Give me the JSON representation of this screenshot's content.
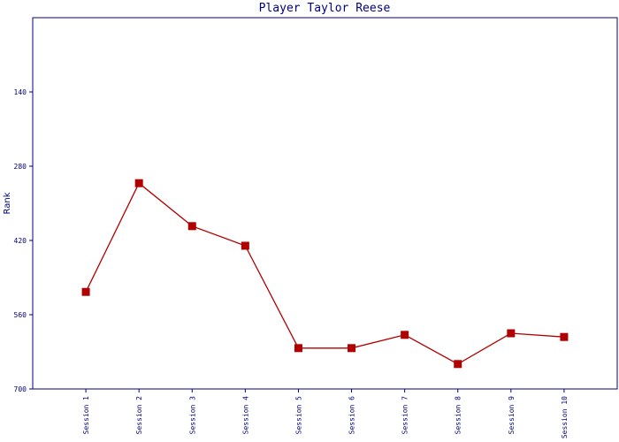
{
  "chart_data": {
    "type": "line",
    "title": "Player Taylor Reese",
    "y_label": "Rank",
    "categories": [
      "Session 1",
      "Session 2",
      "Session 3",
      "Session 4",
      "Session 5",
      "Session 6",
      "Session 7",
      "Session 8",
      "Session 9",
      "Session 10"
    ],
    "series": [
      {
        "name": "Rank",
        "color": "#b00000",
        "values": [
          517,
          312,
          393,
          430,
          623,
          623,
          598,
          653,
          595,
          602
        ]
      }
    ],
    "ylim": [
      700,
      0
    ],
    "yticks": [
      140,
      280,
      420,
      560,
      700
    ],
    "grid": false
  }
}
